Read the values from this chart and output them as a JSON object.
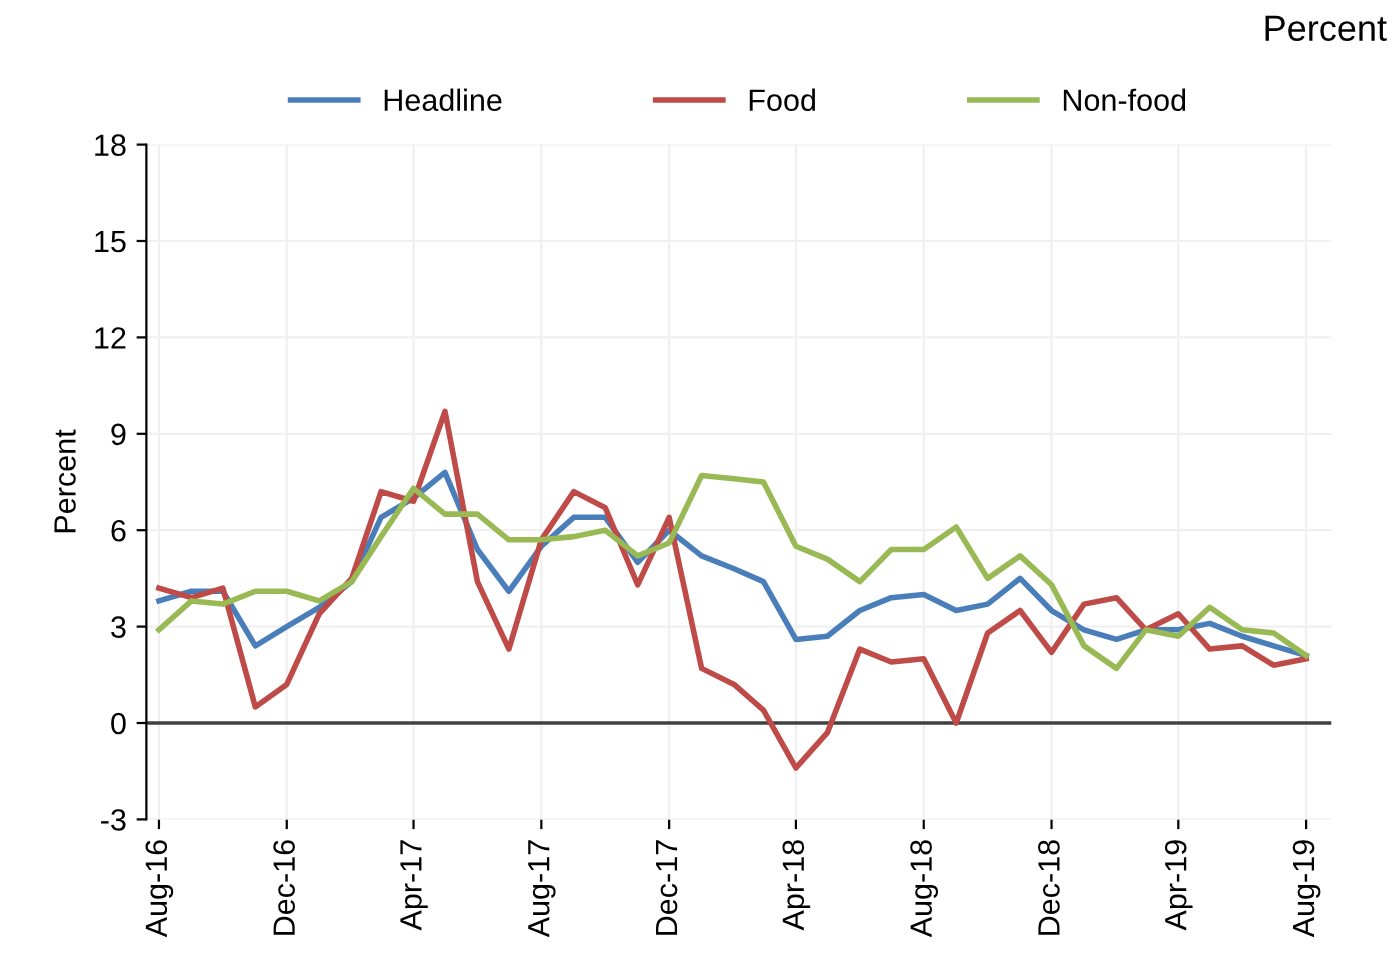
{
  "chart_data": {
    "type": "line",
    "ylabel": "Percent",
    "annotations": [
      "Percent"
    ],
    "x": [
      "2016-08",
      "2016-09",
      "2016-10",
      "2016-11",
      "2016-12",
      "2017-01",
      "2017-02",
      "2017-03",
      "2017-04",
      "2017-05",
      "2017-06",
      "2017-07",
      "2017-08",
      "2017-09",
      "2017-10",
      "2017-11",
      "2017-12",
      "2018-01",
      "2018-02",
      "2018-03",
      "2018-04",
      "2018-05",
      "2018-06",
      "2018-07",
      "2018-08",
      "2018-09",
      "2018-10",
      "2018-11",
      "2018-12",
      "2019-01",
      "2019-02",
      "2019-03",
      "2019-04",
      "2019-05",
      "2019-06",
      "2019-07",
      "2019-08"
    ],
    "series": [
      {
        "name": "Headline",
        "color": "#4a7ebb",
        "values": [
          3.8,
          4.1,
          4.1,
          2.4,
          3.0,
          3.6,
          4.4,
          6.4,
          7.0,
          7.8,
          5.4,
          4.1,
          5.5,
          6.4,
          6.4,
          5.0,
          6.0,
          5.2,
          4.8,
          4.4,
          2.6,
          2.7,
          3.5,
          3.9,
          4.0,
          3.5,
          3.7,
          4.5,
          3.5,
          2.9,
          2.6,
          2.9,
          2.9,
          3.1,
          2.7,
          2.4,
          2.1
        ]
      },
      {
        "name": "Food",
        "color": "#be4b48",
        "values": [
          4.2,
          3.9,
          4.2,
          0.5,
          1.2,
          3.4,
          4.5,
          7.2,
          6.9,
          9.7,
          4.4,
          2.3,
          5.7,
          7.2,
          6.7,
          4.3,
          6.4,
          1.7,
          1.2,
          0.4,
          -1.4,
          -0.3,
          2.3,
          1.9,
          2.0,
          0.0,
          2.8,
          3.5,
          2.2,
          3.7,
          3.9,
          2.9,
          3.4,
          2.3,
          2.4,
          1.8,
          2.0
        ]
      },
      {
        "name": "Non-food",
        "color": "#98b954",
        "values": [
          2.9,
          3.8,
          3.7,
          4.1,
          4.1,
          3.8,
          4.4,
          5.8,
          7.3,
          6.5,
          6.5,
          5.7,
          5.7,
          5.8,
          6.0,
          5.2,
          5.6,
          7.7,
          7.6,
          7.5,
          5.5,
          5.1,
          4.4,
          5.4,
          5.4,
          6.1,
          4.5,
          5.2,
          4.3,
          2.4,
          1.7,
          2.9,
          2.7,
          3.6,
          2.9,
          2.8,
          2.1
        ]
      }
    ],
    "xlim": [
      "2016-07-20",
      "2019-08-25"
    ],
    "xticks": [
      {
        "value": "2016-08",
        "label": "Aug-16"
      },
      {
        "value": "2016-12",
        "label": "Dec-16"
      },
      {
        "value": "2017-04",
        "label": "Apr-17"
      },
      {
        "value": "2017-08",
        "label": "Aug-17"
      },
      {
        "value": "2017-12",
        "label": "Dec-17"
      },
      {
        "value": "2018-04",
        "label": "Apr-18"
      },
      {
        "value": "2018-08",
        "label": "Aug-18"
      },
      {
        "value": "2018-12",
        "label": "Dec-18"
      },
      {
        "value": "2019-04",
        "label": "Apr-19"
      },
      {
        "value": "2019-08",
        "label": "Aug-19"
      }
    ],
    "ylim": [
      -3,
      18
    ],
    "yticks": [
      -3,
      0,
      3,
      6,
      9,
      12,
      15,
      18
    ],
    "ref_lines": [
      {
        "axis": "y",
        "value": 0,
        "color": "#404040"
      }
    ],
    "grid": true,
    "legend": "top",
    "marker": "none",
    "line_style": "solid"
  }
}
